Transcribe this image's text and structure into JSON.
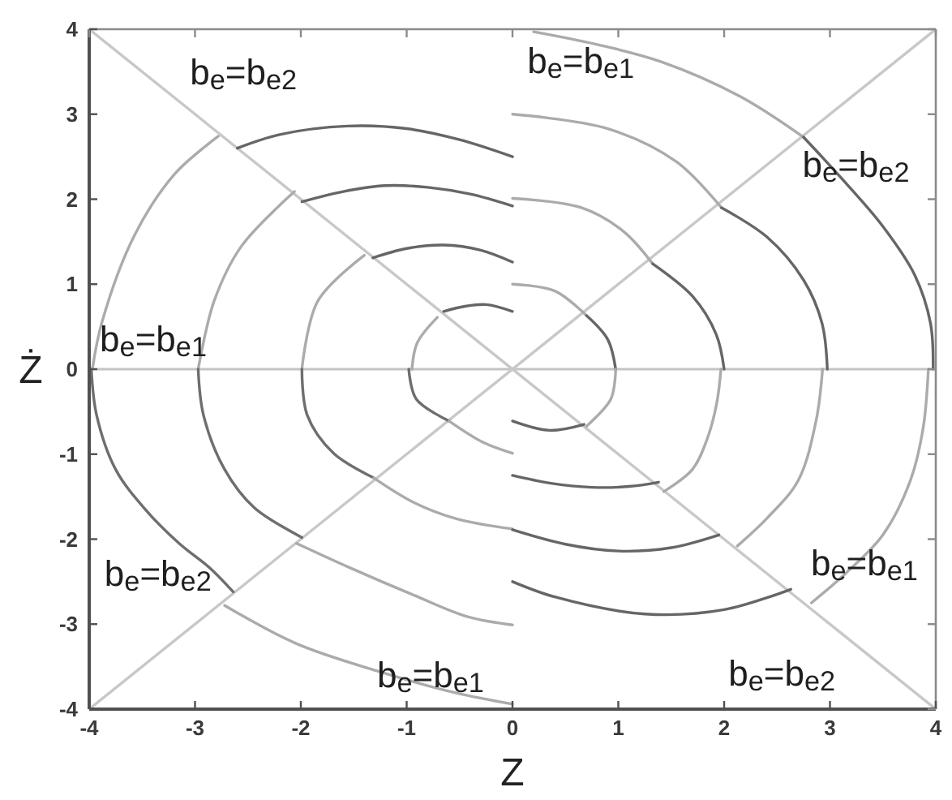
{
  "chart_data": {
    "type": "line",
    "xlabel": "Z",
    "ylabel": "Ż",
    "xlim": [
      -4,
      4
    ],
    "ylim": [
      -4,
      4
    ],
    "xticks": [
      -4,
      -3,
      -2,
      -1,
      0,
      1,
      2,
      3,
      4
    ],
    "yticks": [
      -4,
      -3,
      -2,
      -1,
      0,
      1,
      2,
      3,
      4
    ],
    "ref_lines": [
      {
        "axis": "y",
        "value": 0,
        "color": "#c4c4c4"
      }
    ],
    "annotations": [
      "b$_{e}$=b$_{e2}$",
      "b$_{e}$=b$_{e1}$",
      "b$_{e}$=b$_{e2}$",
      "b$_{e}$=b$_{e1}$",
      "b$_{e}$=b$_{e2}$",
      "b$_{e}$=b$_{e1}$",
      "b$_{e}$=b$_{e1}$",
      "b$_{e}$=b$_{e2}$"
    ],
    "series": [
      {
        "color": "#c8c8c8",
        "x": [
          -4,
          4
        ],
        "values": [
          -4,
          4
        ]
      },
      {
        "color": "#c8c8c8",
        "x": [
          -4,
          4
        ],
        "values": [
          4,
          -4
        ]
      },
      {
        "color": "#666666",
        "x": [
          -2.6,
          -2.2,
          -1.56,
          -1.0,
          -0.5,
          0
        ],
        "values": [
          2.6,
          2.76,
          2.86,
          2.83,
          2.7,
          2.5
        ]
      },
      {
        "color": "#666666",
        "x": [
          -1.99,
          -1.6,
          -1.2,
          -0.8,
          -0.4,
          0
        ],
        "values": [
          1.97,
          2.09,
          2.16,
          2.14,
          2.06,
          1.92
        ]
      },
      {
        "color": "#666666",
        "x": [
          -1.32,
          -1.0,
          -0.65,
          -0.3,
          0
        ],
        "values": [
          1.31,
          1.42,
          1.46,
          1.4,
          1.26
        ]
      },
      {
        "color": "#666666",
        "x": [
          -0.65,
          -0.45,
          -0.25,
          0
        ],
        "values": [
          0.68,
          0.74,
          0.76,
          0.68
        ]
      },
      {
        "color": "#ababab",
        "x": [
          -3.97,
          -3.88,
          -3.57,
          -3.19,
          -2.78
        ],
        "values": [
          0,
          0.55,
          1.58,
          2.3,
          2.74
        ]
      },
      {
        "color": "#ababab",
        "x": [
          -2.97,
          -2.82,
          -2.56,
          -2.06
        ],
        "values": [
          0,
          0.8,
          1.45,
          2.09
        ]
      },
      {
        "color": "#ababab",
        "x": [
          -1.99,
          -1.84,
          -1.4
        ],
        "values": [
          0,
          0.8,
          1.34
        ]
      },
      {
        "color": "#ababab",
        "x": [
          -0.95,
          -0.9,
          -0.71
        ],
        "values": [
          0,
          0.31,
          0.61
        ]
      },
      {
        "color": "#6e6e6e",
        "x": [
          -3.98,
          -3.93,
          -3.75,
          -3.47,
          -3.15,
          -2.85,
          -2.64
        ],
        "values": [
          0,
          -0.54,
          -1.18,
          -1.65,
          -2.05,
          -2.35,
          -2.62
        ]
      },
      {
        "color": "#6e6e6e",
        "x": [
          -2.97,
          -2.92,
          -2.72,
          -2.44,
          -1.99
        ],
        "values": [
          0,
          -0.54,
          -1.18,
          -1.63,
          -1.98
        ]
      },
      {
        "color": "#6e6e6e",
        "x": [
          -1.99,
          -1.94,
          -1.69,
          -1.31
        ],
        "values": [
          0,
          -0.54,
          -0.99,
          -1.28
        ]
      },
      {
        "color": "#6e6e6e",
        "x": [
          -0.98,
          -0.91,
          -0.6
        ],
        "values": [
          0,
          -0.35,
          -0.61
        ]
      },
      {
        "color": "#ababab",
        "x": [
          -2.72,
          -2.04,
          -1.28,
          -0.53,
          0
        ],
        "values": [
          -2.78,
          -3.23,
          -3.55,
          -3.81,
          -3.94
        ]
      },
      {
        "color": "#ababab",
        "x": [
          -2.04,
          -1.53,
          -0.93,
          -0.43,
          0
        ],
        "values": [
          -2.05,
          -2.34,
          -2.66,
          -2.91,
          -3.01
        ]
      },
      {
        "color": "#ababab",
        "x": [
          -1.31,
          -0.93,
          -0.53,
          0
        ],
        "values": [
          -1.28,
          -1.57,
          -1.76,
          -1.88
        ]
      },
      {
        "color": "#ababab",
        "x": [
          -0.6,
          -0.28,
          0
        ],
        "values": [
          -0.61,
          -0.86,
          -0.99
        ]
      },
      {
        "color": "#ababab",
        "x": [
          0.2,
          0.8,
          1.4,
          2.15,
          2.75
        ],
        "values": [
          3.97,
          3.82,
          3.62,
          3.21,
          2.73
        ]
      },
      {
        "color": "#ababab",
        "x": [
          0,
          0.9,
          1.55,
          1.975
        ],
        "values": [
          3.0,
          2.83,
          2.44,
          1.9
        ]
      },
      {
        "color": "#ababab",
        "x": [
          0,
          0.65,
          1.05,
          1.325
        ],
        "values": [
          2.01,
          1.9,
          1.62,
          1.24
        ]
      },
      {
        "color": "#ababab",
        "x": [
          0,
          0.4,
          0.7
        ],
        "values": [
          1.0,
          0.92,
          0.63
        ]
      },
      {
        "color": "#666666",
        "x": [
          2.75,
          3.15,
          3.5,
          3.8,
          3.95,
          3.975
        ],
        "values": [
          2.73,
          2.19,
          1.68,
          1.11,
          0.54,
          0
        ]
      },
      {
        "color": "#666666",
        "x": [
          1.975,
          2.4,
          2.75,
          2.925,
          2.975
        ],
        "values": [
          1.9,
          1.56,
          1.05,
          0.54,
          0
        ]
      },
      {
        "color": "#666666",
        "x": [
          1.325,
          1.7,
          1.925,
          2.0
        ],
        "values": [
          1.24,
          0.86,
          0.41,
          0
        ]
      },
      {
        "color": "#666666",
        "x": [
          0.7,
          0.9,
          0.975
        ],
        "values": [
          0.63,
          0.35,
          0
        ]
      },
      {
        "color": "#ababab",
        "x": [
          3.93,
          3.88,
          3.76,
          3.5,
          3.15,
          2.825
        ],
        "values": [
          0,
          -0.7,
          -1.31,
          -1.95,
          -2.4,
          -2.75
        ]
      },
      {
        "color": "#ababab",
        "x": [
          2.93,
          2.87,
          2.7,
          2.4,
          2.125
        ],
        "values": [
          0,
          -0.6,
          -1.31,
          -1.76,
          -2.08
        ]
      },
      {
        "color": "#ababab",
        "x": [
          1.97,
          1.93,
          1.84,
          1.7,
          1.43
        ],
        "values": [
          0,
          -0.4,
          -0.82,
          -1.18,
          -1.44
        ]
      },
      {
        "color": "#ababab",
        "x": [
          0.975,
          0.93,
          0.7
        ],
        "values": [
          0,
          -0.35,
          -0.67
        ]
      },
      {
        "color": "#666666",
        "x": [
          2.63,
          2.0,
          1.25,
          0.4,
          0
        ],
        "values": [
          -2.59,
          -2.83,
          -2.88,
          -2.68,
          -2.5
        ]
      },
      {
        "color": "#666666",
        "x": [
          1.95,
          1.5,
          1.0,
          0.5,
          0
        ],
        "values": [
          -1.95,
          -2.1,
          -2.14,
          -2.06,
          -1.89
        ]
      },
      {
        "color": "#666666",
        "x": [
          1.38,
          1.1,
          0.75,
          0.35,
          0
        ],
        "values": [
          -1.33,
          -1.38,
          -1.39,
          -1.34,
          -1.25
        ]
      },
      {
        "color": "#666666",
        "x": [
          0.675,
          0.35,
          0
        ],
        "values": [
          -0.65,
          -0.72,
          -0.61
        ]
      }
    ]
  }
}
